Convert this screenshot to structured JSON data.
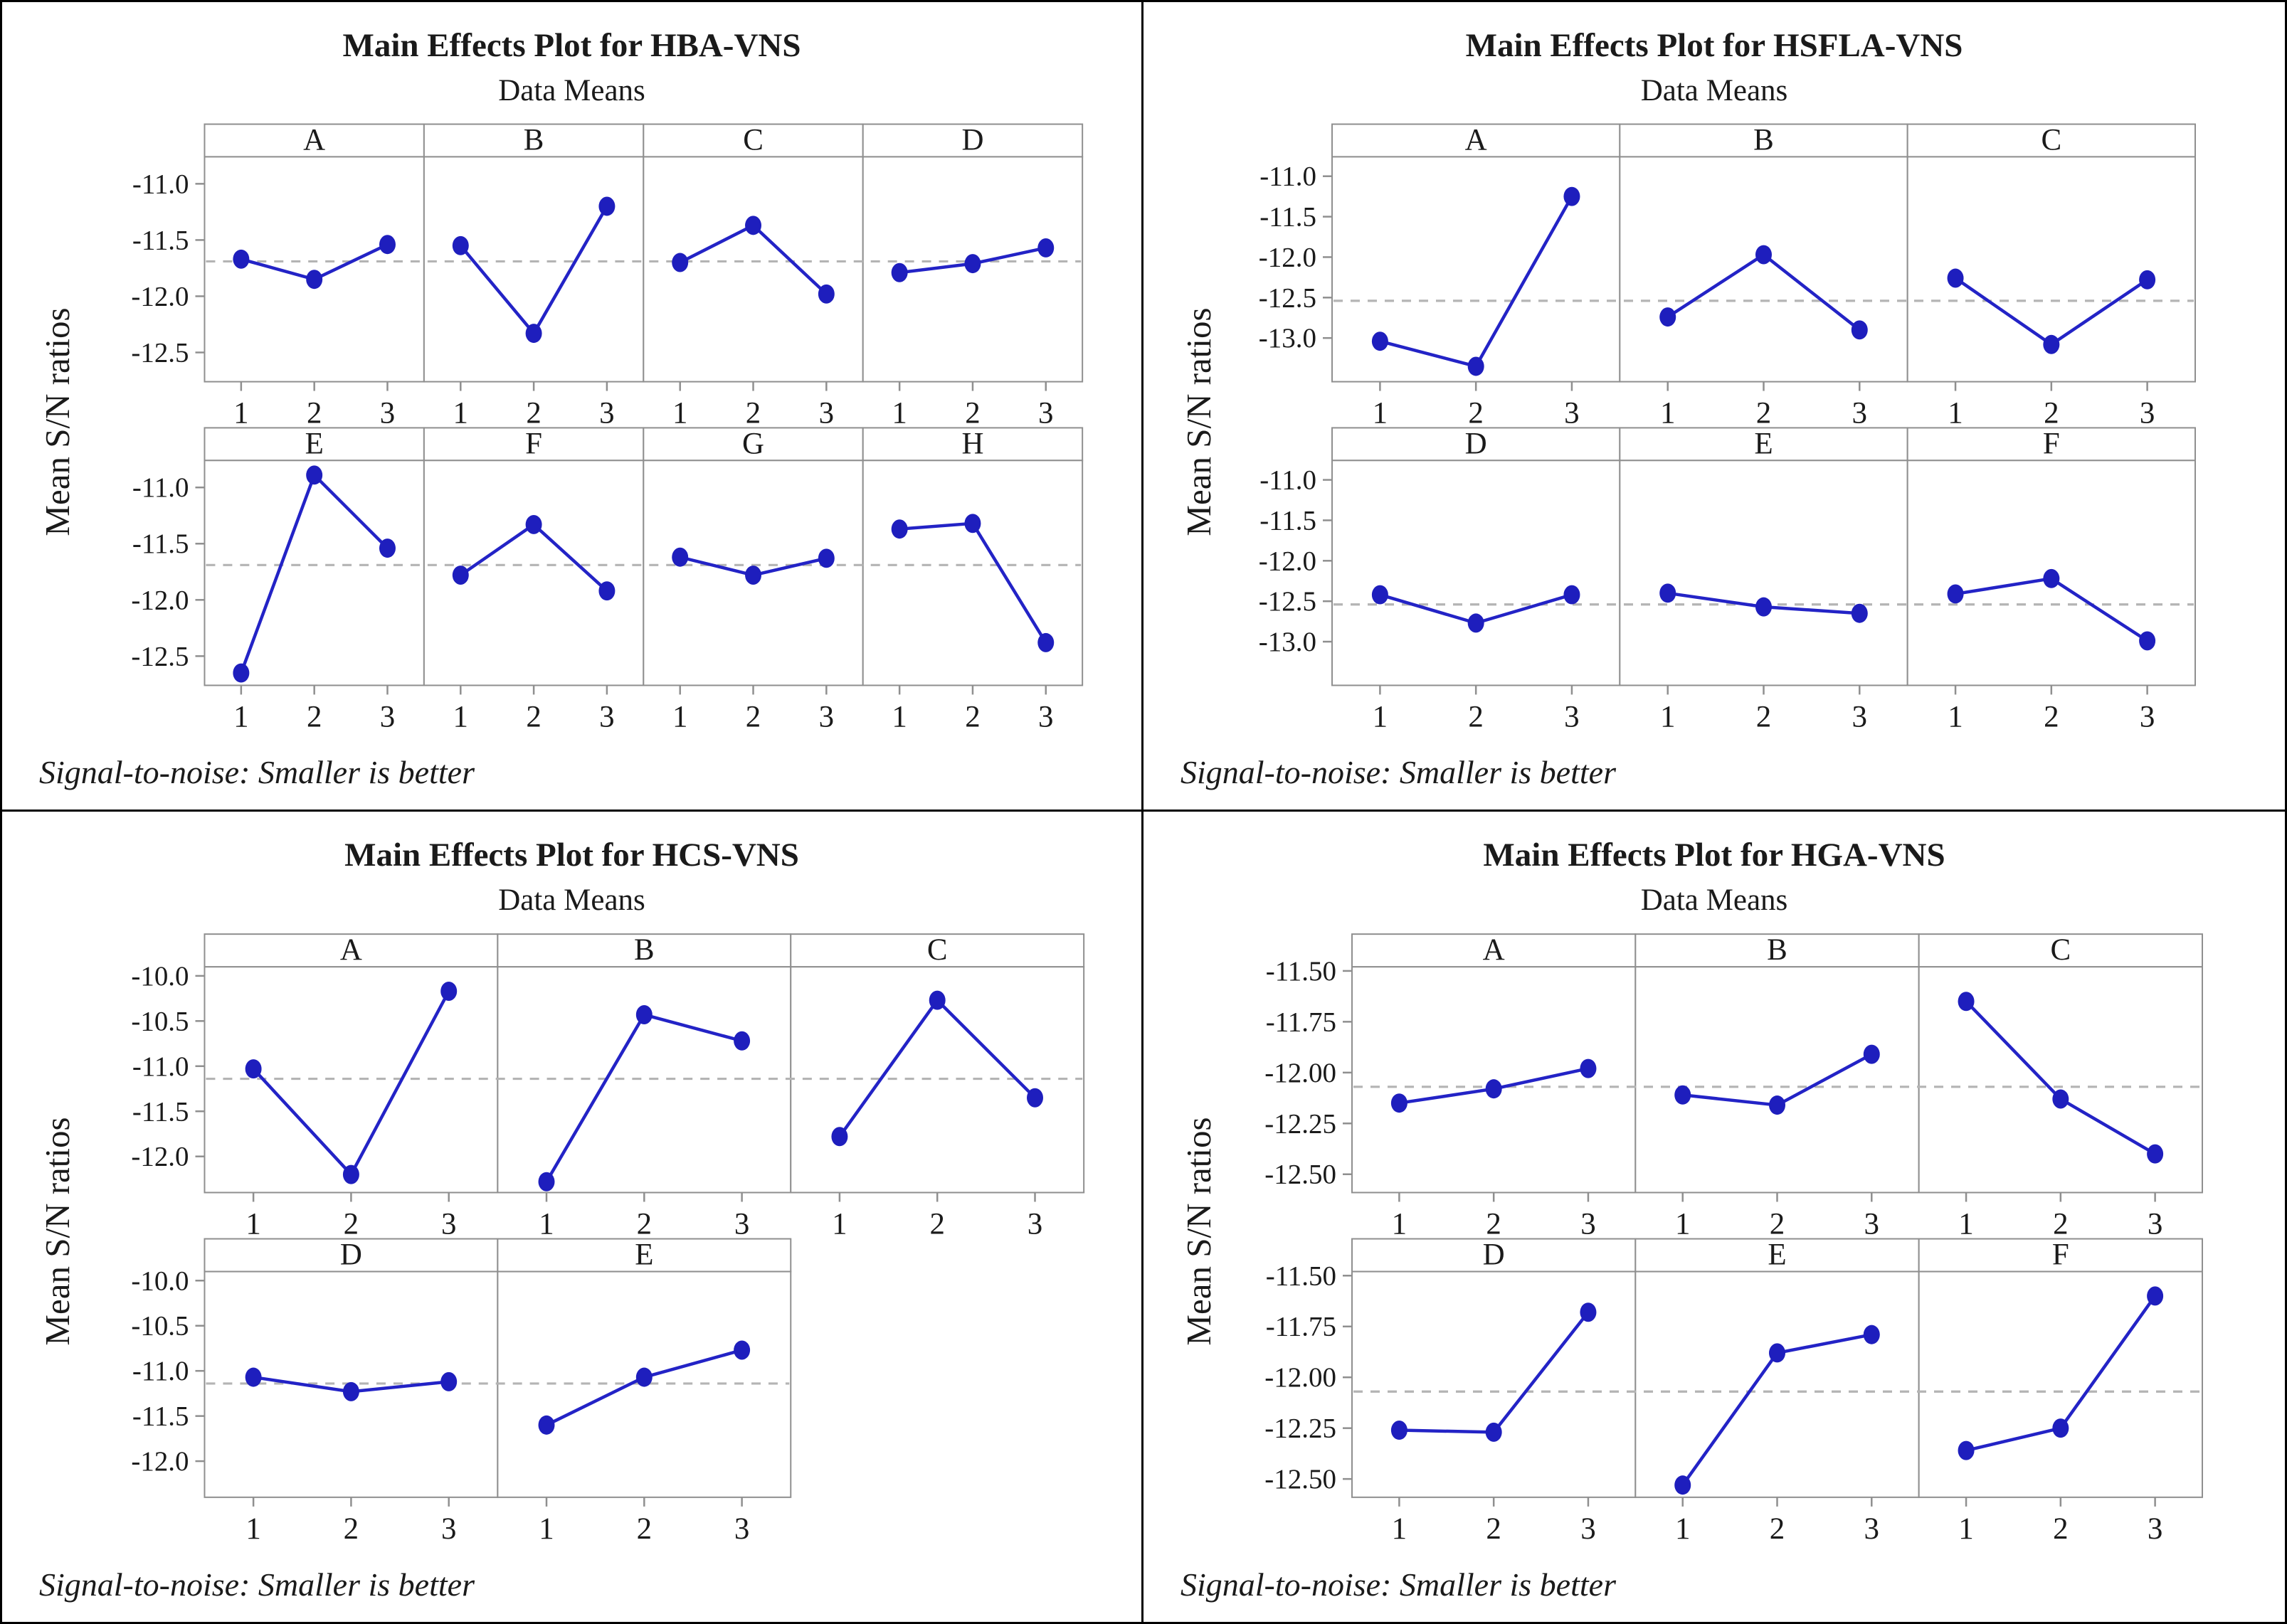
{
  "page": {
    "background": "#ffffff",
    "frame_color": "#000000"
  },
  "chart_data": [
    {
      "type": "line",
      "title": "Main Effects Plot for HBA-VNS",
      "subtitle": "Data Means",
      "ylabel": "Mean S/N ratios",
      "footer": "Signal-to-noise: Smaller is better",
      "x_labels": [
        "1",
        "2",
        "3"
      ],
      "ytick_labels": [
        "-11.0",
        "-11.5",
        "-12.0",
        "-12.5"
      ],
      "ylim": [
        -10.76,
        -12.76
      ],
      "reference_mean": -11.69,
      "reference_style": "dashed",
      "grid": false,
      "legend": "none",
      "line_color": "#2323c6",
      "marker_color": "#1e1ebd",
      "rows": [
        [
          {
            "label": "A",
            "values": [
              -11.67,
              -11.85,
              -11.54
            ]
          },
          {
            "label": "B",
            "values": [
              -11.55,
              -12.33,
              -11.2
            ]
          },
          {
            "label": "C",
            "values": [
              -11.7,
              -11.37,
              -11.98
            ]
          },
          {
            "label": "D",
            "values": [
              -11.79,
              -11.71,
              -11.57
            ]
          }
        ],
        [
          {
            "label": "E",
            "values": [
              -12.65,
              -10.89,
              -11.54
            ]
          },
          {
            "label": "F",
            "values": [
              -11.78,
              -11.33,
              -11.92
            ]
          },
          {
            "label": "G",
            "values": [
              -11.62,
              -11.78,
              -11.63
            ]
          },
          {
            "label": "H",
            "values": [
              -11.37,
              -11.32,
              -12.38
            ]
          }
        ]
      ]
    },
    {
      "type": "line",
      "title": "Main Effects Plot for HSFLA-VNS",
      "subtitle": "Data Means",
      "ylabel": "Mean S/N ratios",
      "footer": "Signal-to-noise: Smaller is better",
      "x_labels": [
        "1",
        "2",
        "3"
      ],
      "ytick_labels": [
        "-11.0",
        "-11.5",
        "-12.0",
        "-12.5",
        "-13.0"
      ],
      "ylim": [
        -10.76,
        -13.54
      ],
      "reference_mean": -12.54,
      "reference_style": "dashed",
      "grid": false,
      "legend": "none",
      "line_color": "#2323c6",
      "marker_color": "#1e1ebd",
      "rows": [
        [
          {
            "label": "A",
            "values": [
              -13.04,
              -13.35,
              -11.25
            ]
          },
          {
            "label": "B",
            "values": [
              -12.74,
              -11.97,
              -12.9
            ]
          },
          {
            "label": "C",
            "values": [
              -12.26,
              -13.08,
              -12.28
            ]
          }
        ],
        [
          {
            "label": "D",
            "values": [
              -12.42,
              -12.77,
              -12.42
            ]
          },
          {
            "label": "E",
            "values": [
              -12.4,
              -12.57,
              -12.65
            ]
          },
          {
            "label": "F",
            "values": [
              -12.41,
              -12.22,
              -12.99
            ]
          }
        ]
      ]
    },
    {
      "type": "line",
      "title": "Main Effects Plot for HCS-VNS",
      "subtitle": "Data Means",
      "ylabel": "Mean S/N ratios",
      "footer": "Signal-to-noise: Smaller is better",
      "x_labels": [
        "1",
        "2",
        "3"
      ],
      "ytick_labels": [
        "-10.0",
        "-10.5",
        "-11.0",
        "-11.5",
        "-12.0"
      ],
      "ylim": [
        -9.9,
        -12.4
      ],
      "reference_mean": -11.14,
      "reference_style": "dashed",
      "grid": false,
      "legend": "none",
      "line_color": "#2323c6",
      "marker_color": "#1e1ebd",
      "rows": [
        [
          {
            "label": "A",
            "values": [
              -11.03,
              -12.2,
              -10.17
            ]
          },
          {
            "label": "B",
            "values": [
              -12.28,
              -10.43,
              -10.72
            ]
          },
          {
            "label": "C",
            "values": [
              -11.78,
              -10.27,
              -11.35
            ]
          }
        ],
        [
          {
            "label": "D",
            "values": [
              -11.07,
              -11.23,
              -11.12
            ]
          },
          {
            "label": "E",
            "values": [
              -11.6,
              -11.07,
              -10.77
            ]
          }
        ]
      ]
    },
    {
      "type": "line",
      "title": "Main Effects Plot for HGA-VNS",
      "subtitle": "Data Means",
      "ylabel": "Mean S/N ratios",
      "footer": "Signal-to-noise: Smaller is better",
      "x_labels": [
        "1",
        "2",
        "3"
      ],
      "ytick_labels": [
        "-11.50",
        "-11.75",
        "-12.00",
        "-12.25",
        "-12.50"
      ],
      "ylim": [
        -11.48,
        -12.59
      ],
      "reference_mean": -12.07,
      "reference_style": "dashed",
      "grid": false,
      "legend": "none",
      "line_color": "#2323c6",
      "marker_color": "#1e1ebd",
      "rows": [
        [
          {
            "label": "A",
            "values": [
              -12.15,
              -12.08,
              -11.98
            ]
          },
          {
            "label": "B",
            "values": [
              -12.11,
              -12.16,
              -11.91
            ]
          },
          {
            "label": "C",
            "values": [
              -11.65,
              -12.13,
              -12.4
            ]
          }
        ],
        [
          {
            "label": "D",
            "values": [
              -12.26,
              -12.27,
              -11.68
            ]
          },
          {
            "label": "E",
            "values": [
              -12.53,
              -11.88,
              -11.79
            ]
          },
          {
            "label": "F",
            "values": [
              -12.36,
              -12.25,
              -11.6
            ]
          }
        ]
      ]
    }
  ]
}
